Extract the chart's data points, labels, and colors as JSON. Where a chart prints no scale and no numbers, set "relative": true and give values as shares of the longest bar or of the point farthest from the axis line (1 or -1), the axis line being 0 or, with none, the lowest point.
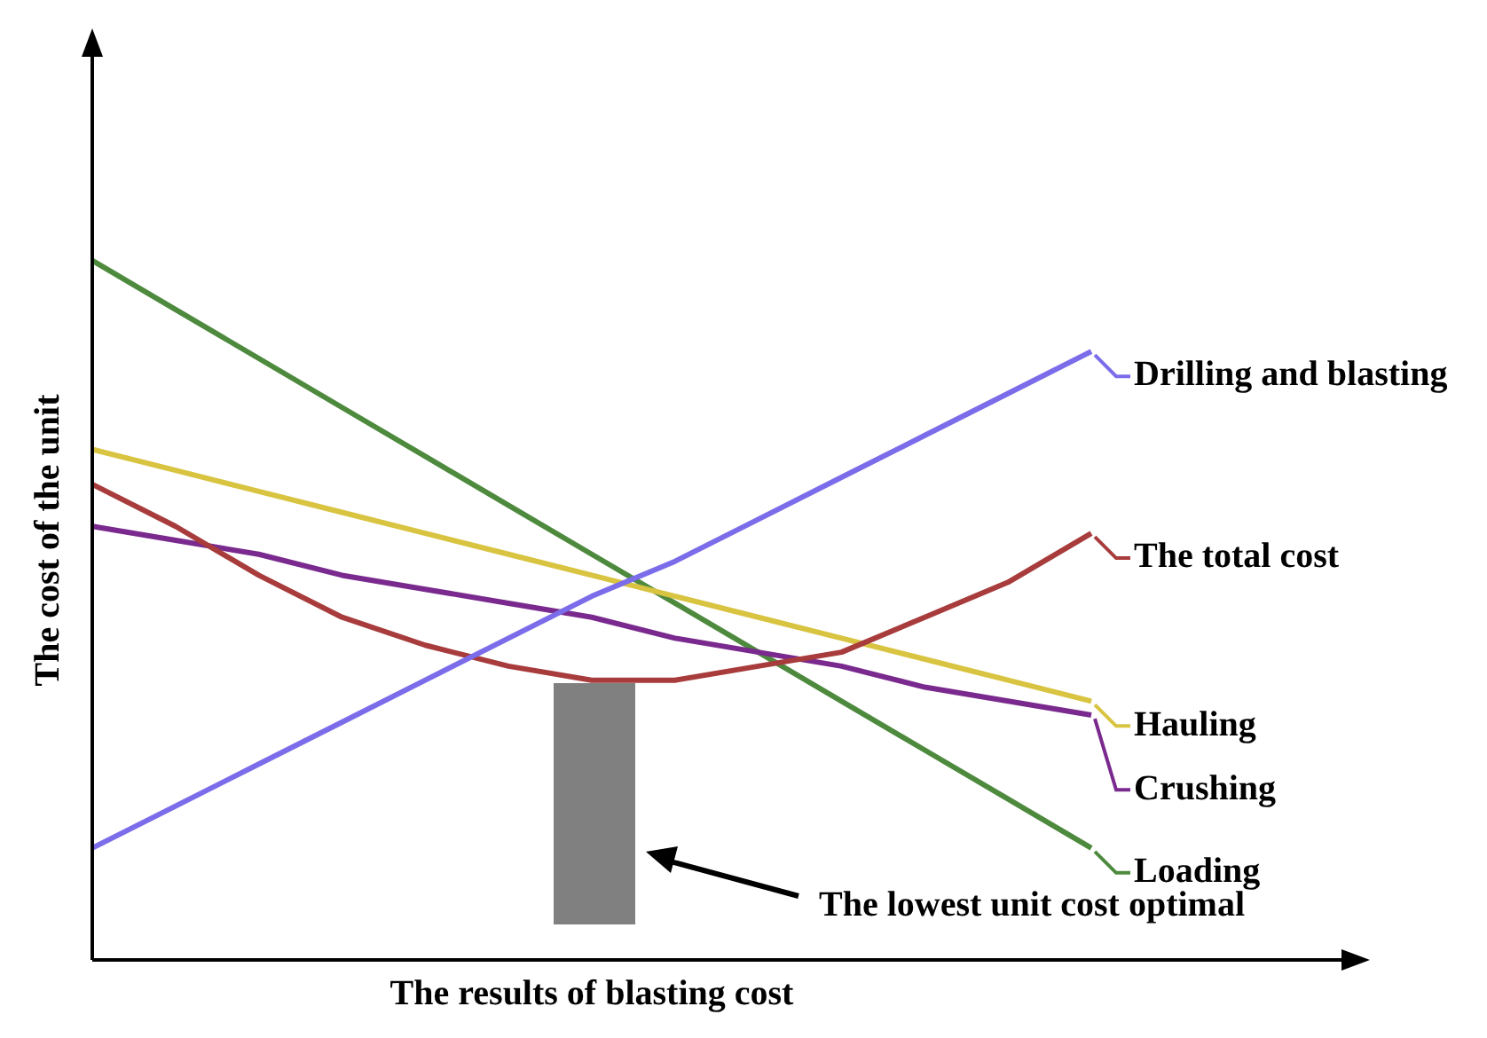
{
  "chart_data": {
    "type": "line",
    "relative": true,
    "xlabel": "The results of blasting cost",
    "ylabel": "The cost of the unit",
    "categories": [
      null,
      null,
      null,
      null,
      null,
      null,
      null,
      null,
      null,
      null,
      null,
      null,
      null
    ],
    "legend": "right",
    "grid": false,
    "marker": "none",
    "line_style": "solid",
    "series": [
      {
        "name": "Drilling and blasting",
        "color": "#7b6cea",
        "values": [
          0.16,
          0.22,
          0.28,
          0.34,
          0.4,
          0.46,
          0.52,
          0.57,
          0.63,
          0.69,
          0.75,
          0.81,
          0.87
        ]
      },
      {
        "name": "The total cost",
        "color": "#a83c3c",
        "values": [
          0.68,
          0.62,
          0.55,
          0.49,
          0.45,
          0.42,
          0.4,
          0.4,
          0.42,
          0.44,
          0.49,
          0.54,
          0.61
        ]
      },
      {
        "name": "Hauling",
        "color": "#d8c440",
        "values": [
          0.73,
          0.7,
          0.67,
          0.64,
          0.61,
          0.58,
          0.55,
          0.52,
          0.49,
          0.46,
          0.43,
          0.4,
          0.37
        ]
      },
      {
        "name": "Crushing",
        "color": "#7a2a8e",
        "values": [
          0.62,
          0.6,
          0.58,
          0.55,
          0.53,
          0.51,
          0.49,
          0.46,
          0.44,
          0.42,
          0.39,
          0.37,
          0.35
        ]
      },
      {
        "name": "Loading",
        "color": "#4e8a3e",
        "values": [
          1.0,
          0.93,
          0.86,
          0.79,
          0.72,
          0.65,
          0.58,
          0.51,
          0.44,
          0.37,
          0.3,
          0.23,
          0.16
        ]
      }
    ],
    "annotations": [
      "The lowest unit cost optimal"
    ]
  }
}
